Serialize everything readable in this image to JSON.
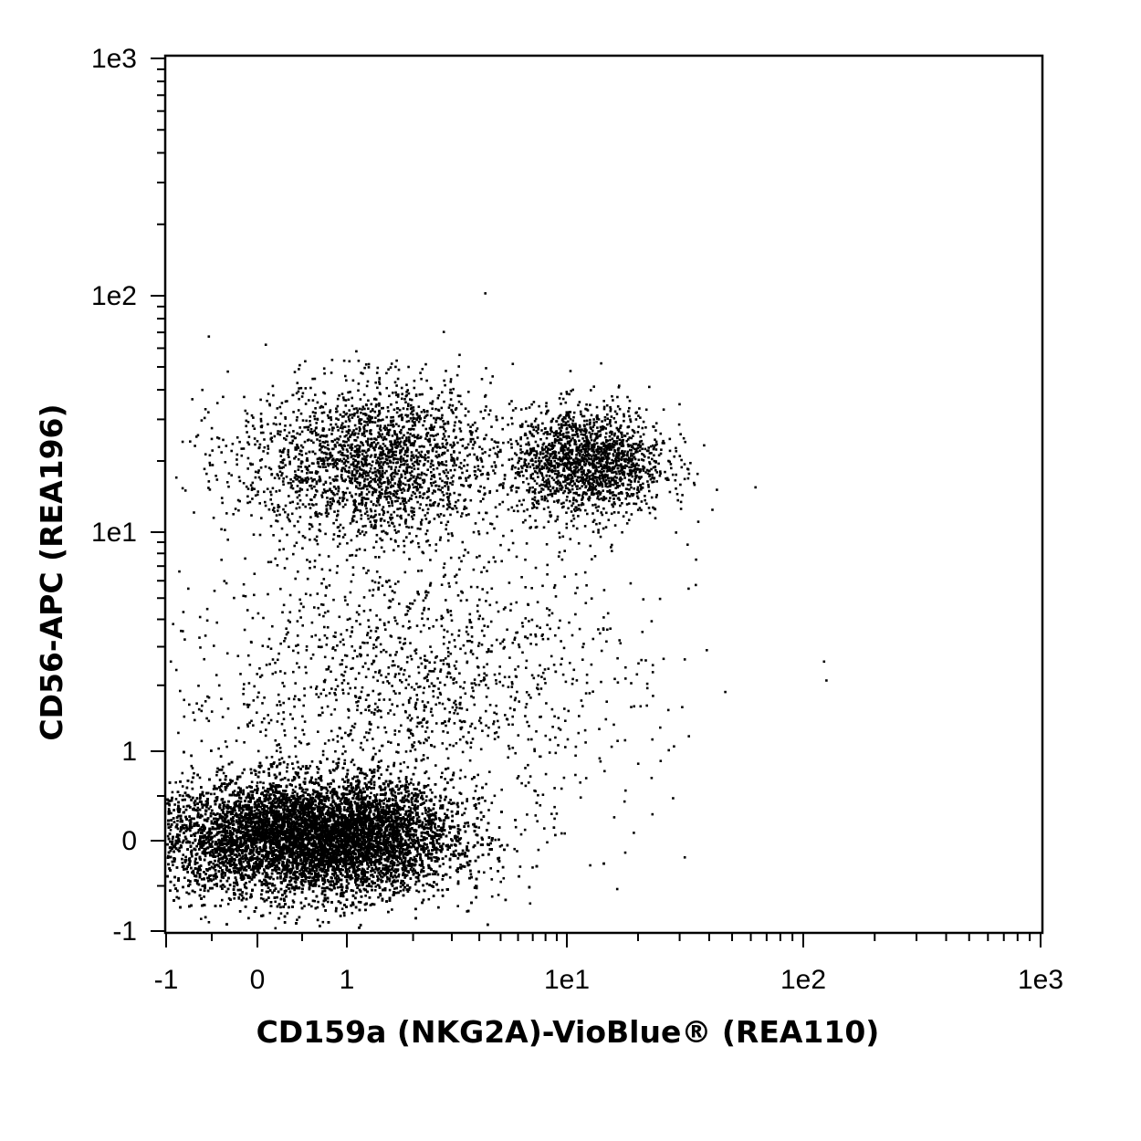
{
  "chart_data": {
    "type": "scatter",
    "title": "",
    "xlabel": "CD159a (NKG2A)-VioBlue® (REA110)",
    "ylabel": "CD56-APC (REA196)",
    "x_scale": "hybrid-log",
    "y_scale": "hybrid-log",
    "xlim": [
      -1,
      1000
    ],
    "ylim": [
      -1,
      1000
    ],
    "x_tick_labels": [
      {
        "value": -1,
        "label": "-1"
      },
      {
        "value": 0,
        "label": "0"
      },
      {
        "value": 1,
        "label": "1"
      },
      {
        "value": 10,
        "label": "1e1"
      },
      {
        "value": 100,
        "label": "1e2"
      },
      {
        "value": 1000,
        "label": "1e3"
      }
    ],
    "y_tick_labels": [
      {
        "value": -1,
        "label": "-1"
      },
      {
        "value": 0,
        "label": "0"
      },
      {
        "value": 1,
        "label": "1"
      },
      {
        "value": 10,
        "label": "1e1"
      },
      {
        "value": 100,
        "label": "1e2"
      },
      {
        "value": 1000,
        "label": "1e3"
      }
    ],
    "grid": false,
    "legend": "none",
    "point_color": "#000000",
    "populations": [
      {
        "description": "double negative",
        "x_center": 0.6,
        "y_center": 0.05,
        "x_spread": 0.9,
        "y_spread": 0.32,
        "weight": 0.78
      },
      {
        "description": "CD56 bright NKG2A dim",
        "x_center": 1.3,
        "y_center": 20,
        "x_spread": 0.8,
        "y_spread": 0.5,
        "weight": 0.09
      },
      {
        "description": "CD56 positive NKG2A positive",
        "x_center": 12,
        "y_center": 20,
        "x_spread": 0.5,
        "y_spread": 0.35,
        "weight": 0.07
      },
      {
        "description": "scatter background",
        "x_center": 2,
        "y_center": 2,
        "x_spread": 1.5,
        "y_spread": 1.0,
        "weight": 0.06
      }
    ]
  }
}
